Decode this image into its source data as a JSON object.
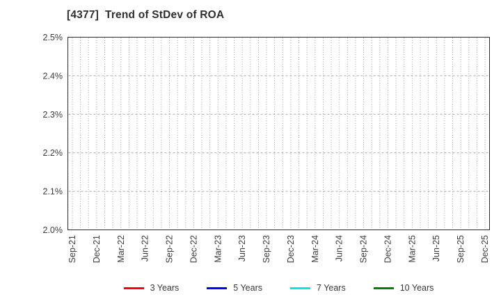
{
  "title": "[4377]  Trend of StDev of ROA",
  "y_axis": {
    "tick_labels_top_to_bottom": [
      "2.5%",
      "2.4%",
      "2.3%",
      "2.2%",
      "2.1%",
      "2.0%"
    ]
  },
  "x_axis": {
    "tick_labels": [
      "Sep-21",
      "Dec-21",
      "Mar-22",
      "Jun-22",
      "Sep-22",
      "Dec-22",
      "Mar-23",
      "Jun-23",
      "Sep-23",
      "Dec-23",
      "Mar-24",
      "Jun-24",
      "Sep-24",
      "Dec-24",
      "Mar-25",
      "Jun-25",
      "Sep-25",
      "Dec-25"
    ]
  },
  "legend": {
    "items": [
      {
        "label": "3 Years",
        "color": "#ff0000"
      },
      {
        "label": "5 Years",
        "color": "#0000ff"
      },
      {
        "label": "7 Years",
        "color": "#00e5ee"
      },
      {
        "label": "10 Years",
        "color": "#008000"
      }
    ]
  },
  "colors": {
    "plot_border": "#2a2a2a",
    "vertical_grid": "#9c9c9c",
    "horizontal_grid": "#a8a8a8",
    "text": "#3c3c3c"
  },
  "chart_data": {
    "type": "line",
    "title": "[4377]  Trend of StDev of ROA",
    "xlabel": "",
    "ylabel": "",
    "ylim": [
      2.0,
      2.5
    ],
    "y_tick_step": 0.1,
    "y_tick_labels": [
      "2.0%",
      "2.1%",
      "2.2%",
      "2.3%",
      "2.4%",
      "2.5%"
    ],
    "x_tick_labels": [
      "Sep-21",
      "Dec-21",
      "Mar-22",
      "Jun-22",
      "Sep-22",
      "Dec-22",
      "Mar-23",
      "Jun-23",
      "Sep-23",
      "Dec-23",
      "Mar-24",
      "Jun-24",
      "Sep-24",
      "Dec-24",
      "Mar-25",
      "Jun-25",
      "Sep-25",
      "Dec-25"
    ],
    "x_months_total": 52,
    "x_label_every_n_months": 3,
    "grid": true,
    "grid_style": {
      "vertical": "dotted-monthly",
      "horizontal": "dashed-at-each-0.1%"
    },
    "legend_position": "bottom",
    "series": [
      {
        "name": "3 Years",
        "color": "#ff0000",
        "values": []
      },
      {
        "name": "5 Years",
        "color": "#0000ff",
        "values": []
      },
      {
        "name": "7 Years",
        "color": "#00e5ee",
        "values": []
      },
      {
        "name": "10 Years",
        "color": "#008000",
        "values": []
      }
    ]
  }
}
